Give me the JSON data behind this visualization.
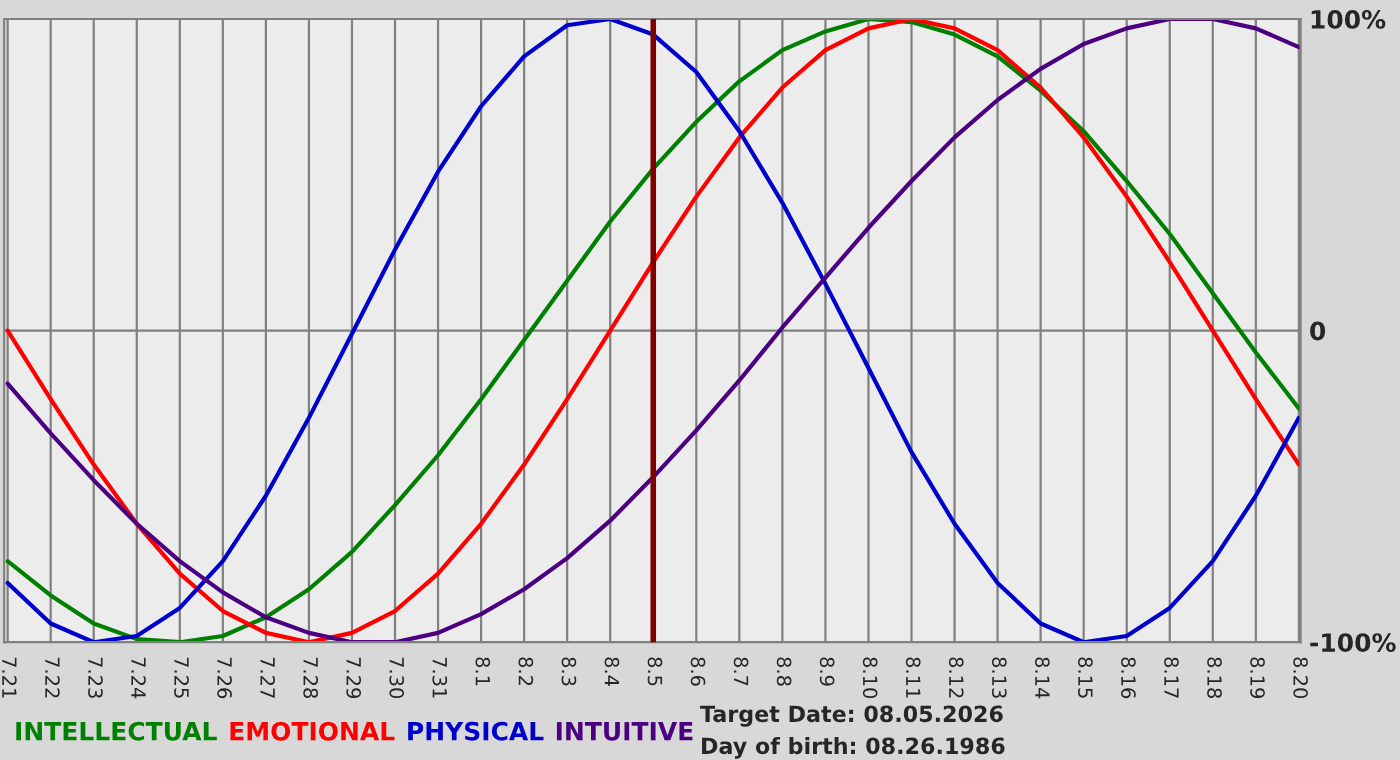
{
  "chart_data": {
    "type": "line",
    "categories": [
      "7.21",
      "7.22",
      "7.23",
      "7.24",
      "7.25",
      "7.26",
      "7.27",
      "7.28",
      "7.29",
      "7.30",
      "7.31",
      "8.1",
      "8.2",
      "8.3",
      "8.4",
      "8.5",
      "8.6",
      "8.7",
      "8.8",
      "8.9",
      "8.10",
      "8.11",
      "8.12",
      "8.13",
      "8.14",
      "8.15",
      "8.16",
      "8.17",
      "8.18",
      "8.19",
      "8.20"
    ],
    "series": [
      {
        "name": "INTELLECTUAL",
        "color": "#008000",
        "values": [
          -74,
          -85,
          -94,
          -99,
          -100,
          -98,
          -92,
          -83,
          -71,
          -56,
          -40,
          -22,
          -3,
          16,
          35,
          52,
          67,
          80,
          90,
          96,
          100,
          99,
          95,
          88,
          77,
          64,
          48,
          31,
          12,
          -7,
          -25
        ]
      },
      {
        "name": "EMOTIONAL",
        "color": "#ff0000",
        "values": [
          0,
          -22,
          -43,
          -62,
          -78,
          -90,
          -97,
          -100,
          -97,
          -90,
          -78,
          -62,
          -43,
          -22,
          0,
          22,
          43,
          62,
          78,
          90,
          97,
          100,
          97,
          90,
          78,
          62,
          43,
          22,
          0,
          -22,
          -43
        ]
      },
      {
        "name": "PHYSICAL",
        "color": "#0000cc",
        "values": [
          -81,
          -94,
          -100,
          -98,
          -89,
          -74,
          -53,
          -28,
          -1,
          26,
          51,
          72,
          88,
          98,
          100,
          95,
          83,
          64,
          41,
          15,
          -12,
          -39,
          -62,
          -81,
          -94,
          -100,
          -98,
          -89,
          -74,
          -53,
          -28
        ]
      },
      {
        "name": "INTUITIVE",
        "color": "#4b0082",
        "values": [
          -17,
          -33,
          -48,
          -62,
          -74,
          -84,
          -92,
          -97,
          -100,
          -100,
          -97,
          -91,
          -83,
          -73,
          -61,
          -47,
          -32,
          -16,
          1,
          17,
          33,
          48,
          62,
          74,
          84,
          92,
          97,
          100,
          100,
          97,
          91
        ]
      }
    ],
    "ylim": [
      -100,
      100
    ],
    "yticks": [
      {
        "value": 100,
        "label": "100%"
      },
      0,
      {
        "value": -100,
        "label": "-100%"
      }
    ],
    "ref_lines": [
      {
        "axis": "x",
        "value": "8.5",
        "color": "#800000"
      }
    ],
    "annotations": [
      "Target Date: 08.05.2026",
      "Day of birth: 08.26.1986"
    ],
    "grid": true,
    "legend": "bottom left",
    "marker": "none",
    "line_style": "solid"
  }
}
